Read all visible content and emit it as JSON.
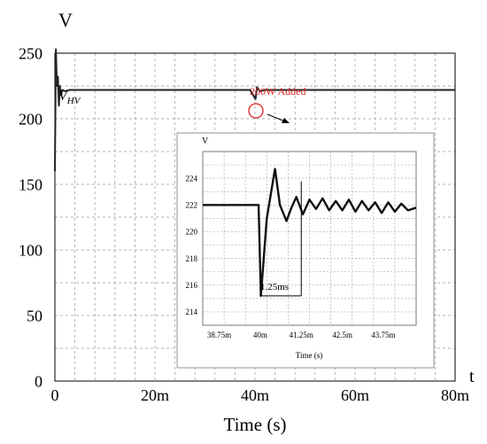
{
  "chart_data": [
    {
      "type": "line",
      "ylabel": "V",
      "xlabel": "Time (s)",
      "x_axis_end_label": "t",
      "xlim": [
        0,
        0.08
      ],
      "ylim": [
        0,
        250
      ],
      "grid": true,
      "x_tick_labels": [
        "0",
        "20m",
        "40m",
        "60m",
        "80m"
      ],
      "x_tick_values": [
        0,
        0.02,
        0.04,
        0.06,
        0.08
      ],
      "y_tick_labels": [
        "0",
        "50",
        "100",
        "150",
        "200",
        "250"
      ],
      "y_tick_values": [
        0,
        50,
        100,
        150,
        200,
        250
      ],
      "series": [
        {
          "name": "V_HV",
          "name_main": "V",
          "name_sub": "HV",
          "color": "#222222",
          "x": [
            0,
            0.0002,
            0.0004,
            0.0006,
            0.0008,
            0.001,
            0.0012,
            0.0015,
            0.002,
            0.003,
            0.005,
            0.01,
            0.02,
            0.03,
            0.039,
            0.0401,
            0.0404,
            0.041,
            0.042,
            0.05,
            0.06,
            0.07,
            0.08
          ],
          "values": [
            160,
            253,
            225,
            232,
            210,
            225,
            218,
            222,
            221,
            222,
            222,
            222,
            222,
            222,
            222,
            215,
            224,
            221,
            222,
            222,
            222,
            222,
            222
          ]
        }
      ],
      "annotations": [
        {
          "text": "200W Added",
          "color": "#e02020",
          "x": 0.04,
          "y": 222
        }
      ]
    },
    {
      "type": "line",
      "inset": true,
      "ylabel": "V",
      "xlabel": "Time (s)",
      "xlim": [
        0.03825,
        0.04475
      ],
      "ylim": [
        213,
        226
      ],
      "grid": true,
      "x_tick_labels": [
        "38.75m",
        "40m",
        "41.25m",
        "42.5m",
        "43.75m"
      ],
      "x_tick_values": [
        0.03875,
        0.04,
        0.04125,
        0.0425,
        0.04375
      ],
      "y_tick_labels": [
        "214",
        "216",
        "218",
        "220",
        "222",
        "224"
      ],
      "y_tick_values": [
        214,
        216,
        218,
        220,
        222,
        224
      ],
      "series": [
        {
          "name": "V_HV",
          "color": "#111111",
          "x": [
            0.03825,
            0.0385,
            0.0388,
            0.0391,
            0.0394,
            0.0397,
            0.03995,
            0.04002,
            0.0402,
            0.04045,
            0.0406,
            0.0408,
            0.04095,
            0.0411,
            0.0413,
            0.0415,
            0.0417,
            0.0419,
            0.0421,
            0.0423,
            0.0425,
            0.0427,
            0.0429,
            0.0431,
            0.0433,
            0.0435,
            0.0437,
            0.0439,
            0.0441,
            0.0443,
            0.0445,
            0.04475
          ],
          "values": [
            222,
            222,
            222,
            222,
            222,
            222,
            222,
            215.2,
            221,
            224.7,
            222,
            220.8,
            221.8,
            222.6,
            221.3,
            222.4,
            221.7,
            222.5,
            221.6,
            222.3,
            221.6,
            222.4,
            221.5,
            222.3,
            221.6,
            222.2,
            221.4,
            222.2,
            221.5,
            222.1,
            221.6,
            221.8
          ]
        }
      ],
      "annotations": [
        {
          "text": "1.25ms",
          "x_start": 0.04,
          "x_end": 0.04125,
          "y": 215.2
        }
      ]
    }
  ]
}
